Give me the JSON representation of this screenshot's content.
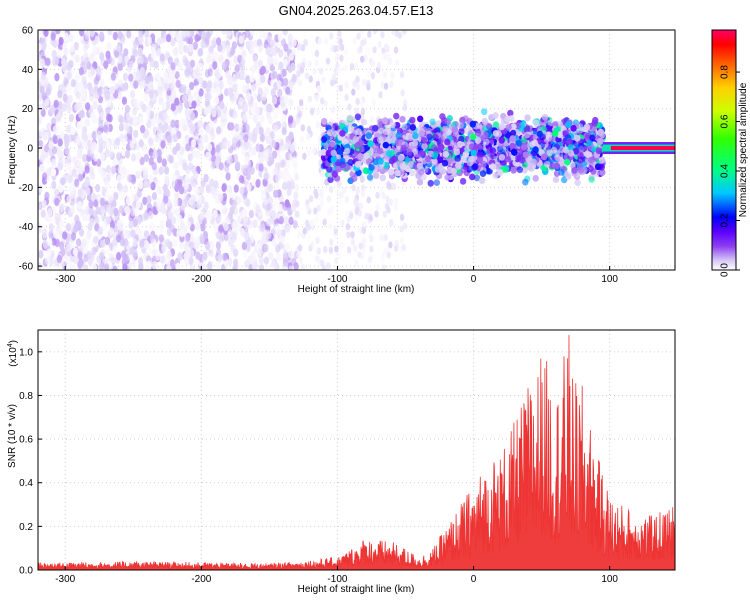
{
  "page": {
    "title": "GN04.2025.263.04.57.E13"
  },
  "chart_data": [
    {
      "type": "heatmap",
      "title": "GN04.2025.263.04.57.E13",
      "xlabel": "Height of straight line (km)",
      "ylabel": "Frequency (Hz)",
      "xlim": [
        -320,
        148
      ],
      "ylim": [
        -62,
        60
      ],
      "xticks": [
        -300,
        -200,
        -100,
        0,
        100
      ],
      "xtick_labels": [
        "-300",
        "-200",
        "-100",
        "0",
        "100"
      ],
      "yticks": [
        -60,
        -40,
        -20,
        0,
        20,
        40,
        60
      ],
      "ytick_labels": [
        "-60",
        "-40",
        "-20",
        "0",
        "20",
        "40",
        "60"
      ],
      "grid": true,
      "colorbar": {
        "label": "Normalized spectral amplitude",
        "range": [
          0,
          0.97
        ],
        "ticks": [
          0.0,
          0.2,
          0.4,
          0.6,
          0.8
        ],
        "tick_labels": [
          "0.0",
          "0.2",
          "0.4",
          "0.6",
          "0.8"
        ],
        "colors": [
          "#ffffff",
          "#d6c8f6",
          "#8b3cf0",
          "#5a00ff",
          "#0000ff",
          "#00c8ff",
          "#00ff80",
          "#33ff00",
          "#ccff00",
          "#ffd000",
          "#ff6000",
          "#ff0000",
          "#ff0066"
        ]
      },
      "regions": [
        {
          "x_range": [
            -320,
            -130
          ],
          "f_range": [
            -62,
            60
          ],
          "amplitude": 0.05,
          "character": "dense speckle"
        },
        {
          "x_range": [
            -130,
            -50
          ],
          "f_range": [
            -62,
            60
          ],
          "amplitude": 0.03,
          "character": "sparse speckle"
        },
        {
          "x_range": [
            -110,
            95
          ],
          "f_range": [
            -20,
            20
          ],
          "amplitude": 0.2,
          "character": "broad band"
        },
        {
          "x_range": [
            95,
            148
          ],
          "f_range": [
            -4,
            4
          ],
          "amplitude": 0.95,
          "character": "narrow line"
        }
      ]
    },
    {
      "type": "line",
      "xlabel": "Height of straight line (km)",
      "ylabel": "SNR (10 * v/v)",
      "y_multiplier": "(x10",
      "y_multiplier_exp": "4",
      "y_multiplier_close": ")",
      "xlim": [
        -320,
        148
      ],
      "ylim": [
        0,
        1.1
      ],
      "xticks": [
        -300,
        -200,
        -100,
        0,
        100
      ],
      "xtick_labels": [
        "-300",
        "-200",
        "-100",
        "0",
        "100"
      ],
      "yticks": [
        0.0,
        0.2,
        0.4,
        0.6,
        0.8,
        1.0
      ],
      "ytick_labels": [
        "0.0",
        "0.2",
        "0.4",
        "0.6",
        "0.8",
        "1.0"
      ],
      "grid": true,
      "color": "#ee3333",
      "series": [
        {
          "x": [
            -320,
            -300,
            -250,
            -200,
            -150,
            -130,
            -100,
            -90,
            -80,
            -60,
            -50,
            -40,
            -30,
            -20,
            -10,
            0,
            10,
            20,
            30,
            40,
            50,
            55,
            60,
            70,
            73,
            80,
            90,
            100,
            110,
            120,
            130,
            140,
            145,
            148
          ],
          "y": [
            0.035,
            0.035,
            0.04,
            0.035,
            0.03,
            0.04,
            0.06,
            0.1,
            0.15,
            0.13,
            0.1,
            0.06,
            0.1,
            0.2,
            0.3,
            0.4,
            0.5,
            0.55,
            0.68,
            0.85,
            1.02,
            0.95,
            0.8,
            1.1,
            0.88,
            0.85,
            0.55,
            0.35,
            0.3,
            0.28,
            0.25,
            0.28,
            0.3,
            0.3
          ]
        }
      ]
    }
  ]
}
